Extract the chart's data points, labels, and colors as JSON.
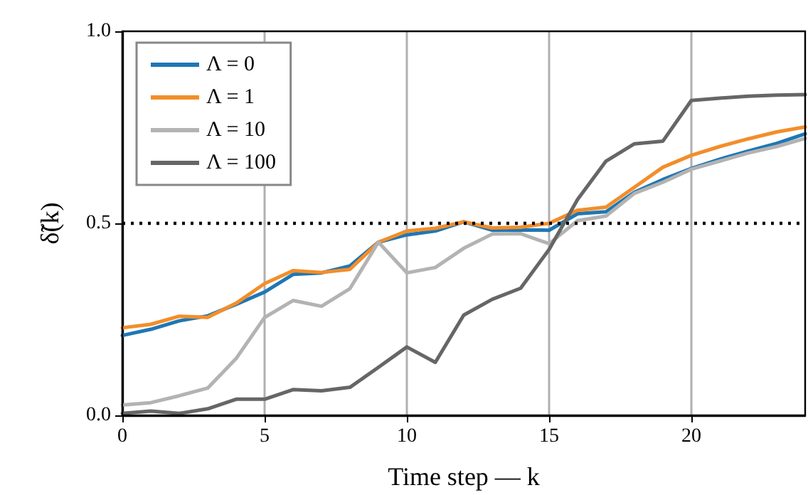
{
  "chart_data": {
    "type": "line",
    "xlabel": "Time step — k",
    "ylabel": "δ̃(k)",
    "x": [
      0,
      1,
      2,
      3,
      4,
      5,
      6,
      7,
      8,
      9,
      10,
      11,
      12,
      13,
      14,
      15,
      16,
      17,
      18,
      19,
      20,
      21,
      22,
      23,
      24
    ],
    "series": [
      {
        "name": "Λ = 0",
        "color": "#1f77b4",
        "values": [
          0.208,
          0.224,
          0.246,
          0.259,
          0.289,
          0.321,
          0.367,
          0.371,
          0.389,
          0.451,
          0.47,
          0.48,
          0.504,
          0.482,
          0.483,
          0.482,
          0.525,
          0.53,
          0.581,
          0.614,
          0.643,
          0.667,
          0.688,
          0.708,
          0.733
        ]
      },
      {
        "name": "Λ = 1",
        "color": "#f28e2b",
        "values": [
          0.228,
          0.237,
          0.258,
          0.255,
          0.292,
          0.343,
          0.377,
          0.372,
          0.38,
          0.451,
          0.48,
          0.487,
          0.504,
          0.488,
          0.49,
          0.5,
          0.534,
          0.542,
          0.594,
          0.646,
          0.677,
          0.7,
          0.72,
          0.738,
          0.751
        ]
      },
      {
        "name": "Λ = 10",
        "color": "#b3b3b3",
        "values": [
          0.027,
          0.033,
          0.051,
          0.071,
          0.148,
          0.255,
          0.299,
          0.284,
          0.33,
          0.451,
          0.371,
          0.385,
          0.435,
          0.472,
          0.473,
          0.447,
          0.507,
          0.519,
          0.578,
          0.607,
          0.641,
          0.662,
          0.683,
          0.7,
          0.721
        ]
      },
      {
        "name": "Λ = 100",
        "color": "#666666",
        "values": [
          0.005,
          0.011,
          0.005,
          0.017,
          0.042,
          0.042,
          0.067,
          0.064,
          0.073,
          0.125,
          0.178,
          0.138,
          0.261,
          0.302,
          0.331,
          0.432,
          0.562,
          0.662,
          0.707,
          0.714,
          0.82,
          0.826,
          0.831,
          0.834,
          0.835
        ]
      }
    ],
    "xlim": [
      0,
      24
    ],
    "xticks": [
      0,
      5,
      10,
      15,
      20
    ],
    "ylim": [
      0,
      1
    ],
    "yticks": [
      {
        "value": 0,
        "label": "0.0"
      },
      {
        "value": 0.5,
        "label": "0.5"
      },
      {
        "value": 1,
        "label": "1.0"
      }
    ],
    "ref_lines": [
      {
        "axis": "y",
        "value": 0.5,
        "color": "#000000",
        "line_style": "dotted"
      }
    ],
    "grid": "x",
    "legend": "top left",
    "line_style": "solid",
    "marker": "none"
  }
}
